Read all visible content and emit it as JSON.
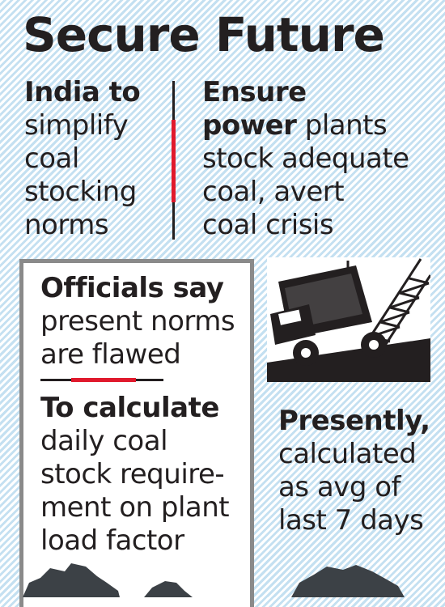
{
  "title": "Secure Future",
  "left_top": {
    "bold": "India to",
    "lines": [
      "simplify",
      "coal",
      "stocking",
      "norms"
    ]
  },
  "right_top": {
    "bold_line": "Ensure",
    "bold_word": "power",
    "rest_of_line": " plants",
    "lines": [
      "stock adequate",
      "coal, avert",
      "coal crisis"
    ]
  },
  "panel": {
    "officials_bold": "Officials say",
    "officials_lines": [
      "present norms",
      "are flawed"
    ],
    "calc_bold": "To calculate",
    "calc_lines": [
      "daily coal",
      "stock require-",
      "ment on plant",
      "load factor"
    ]
  },
  "presently": {
    "bold": "Presently,",
    "lines": [
      "calculated",
      "as avg of",
      "last 7 days"
    ]
  },
  "colors": {
    "accent_red": "#e0192c",
    "text": "#231f20",
    "background_stripe": "#c4e0f1"
  },
  "icons": [
    "dump-truck-icon",
    "crane-icon",
    "coal-heap-icon"
  ]
}
